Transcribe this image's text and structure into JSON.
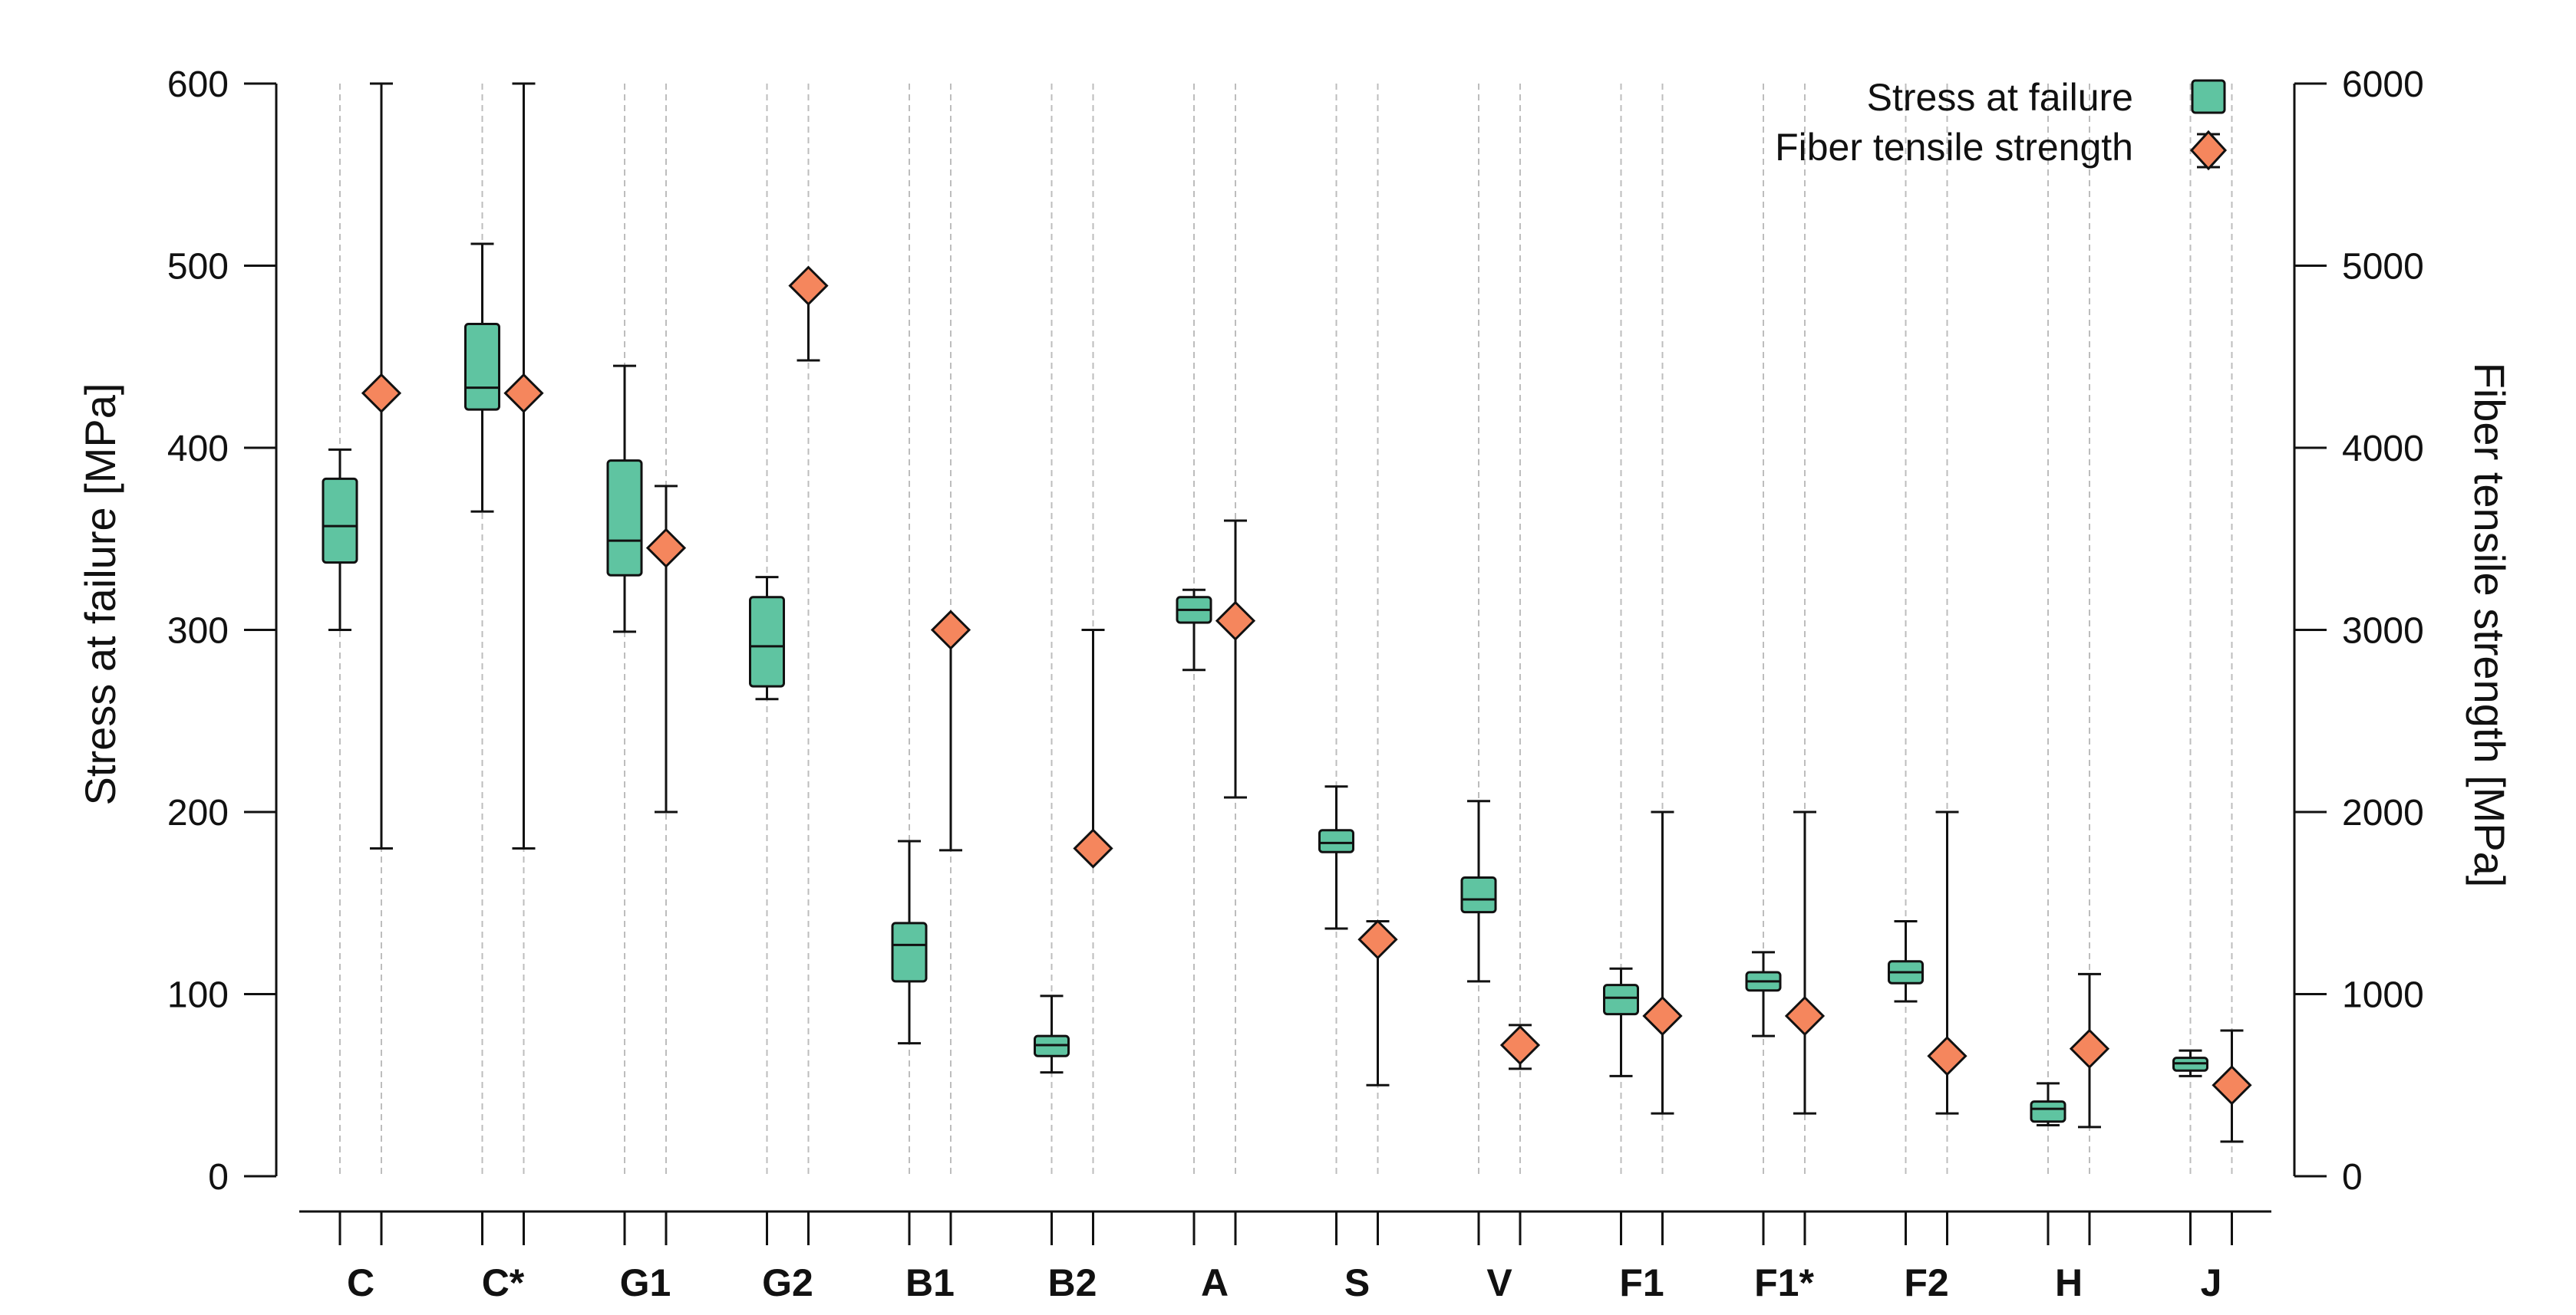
{
  "chart_data": {
    "type": "box",
    "categories": [
      "C",
      "C*",
      "G1",
      "G2",
      "B1",
      "B2",
      "A",
      "S",
      "V",
      "F1",
      "F1*",
      "F2",
      "H",
      "J"
    ],
    "left_axis": {
      "label": "Stress at failure [MPa]",
      "ylim": [
        0,
        600
      ],
      "ticks": [
        0,
        100,
        200,
        300,
        400,
        500,
        600
      ]
    },
    "right_axis": {
      "label": "Fiber tensile strength [MPa]",
      "ylim": [
        0,
        6000
      ],
      "ticks": [
        0,
        1000,
        2000,
        3000,
        4000,
        5000,
        6000
      ]
    },
    "legend": {
      "placement": "top-right",
      "entries": [
        {
          "label": "Stress at failure",
          "marker": "box"
        },
        {
          "label": "Fiber tensile strength",
          "marker": "diamond"
        }
      ]
    },
    "colors": {
      "box": "#5fc4a1",
      "diamond": "#f5865d",
      "stroke": "#111111",
      "grid": "#bdbdbd"
    },
    "grid": "vertical-dashed",
    "stress_at_failure": [
      {
        "category": "C",
        "min": 300,
        "q1": 337,
        "median": 357,
        "q3": 383,
        "max": 399
      },
      {
        "category": "C*",
        "min": 365,
        "q1": 421,
        "median": 433,
        "q3": 468,
        "max": 512
      },
      {
        "category": "G1",
        "min": 299,
        "q1": 330,
        "median": 349,
        "q3": 393,
        "max": 445
      },
      {
        "category": "G2",
        "min": 262,
        "q1": 269,
        "median": 291,
        "q3": 318,
        "max": 329
      },
      {
        "category": "B1",
        "min": 73,
        "q1": 107,
        "median": 127,
        "q3": 139,
        "max": 184
      },
      {
        "category": "B2",
        "min": 57,
        "q1": 66,
        "median": 72,
        "q3": 77,
        "max": 99
      },
      {
        "category": "A",
        "min": 278,
        "q1": 304,
        "median": 311,
        "q3": 318,
        "max": 322
      },
      {
        "category": "S",
        "min": 136,
        "q1": 178,
        "median": 183,
        "q3": 190,
        "max": 214
      },
      {
        "category": "V",
        "min": 107,
        "q1": 145,
        "median": 152,
        "q3": 164,
        "max": 206
      },
      {
        "category": "F1",
        "min": 55,
        "q1": 89,
        "median": 98,
        "q3": 105,
        "max": 114
      },
      {
        "category": "F1*",
        "min": 77,
        "q1": 102,
        "median": 107,
        "q3": 112,
        "max": 123
      },
      {
        "category": "F2",
        "min": 96,
        "q1": 106,
        "median": 112,
        "q3": 118,
        "max": 140
      },
      {
        "category": "H",
        "min": 28,
        "q1": 30,
        "median": 37,
        "q3": 41,
        "max": 51
      },
      {
        "category": "J",
        "min": 55,
        "q1": 58,
        "median": 62,
        "q3": 65,
        "max": 69
      }
    ],
    "fiber_tensile_strength": [
      {
        "category": "C",
        "value": 4300,
        "low": 1800,
        "high": 6000
      },
      {
        "category": "C*",
        "value": 4300,
        "low": 1800,
        "high": 6000
      },
      {
        "category": "G1",
        "value": 3450,
        "low": 2000,
        "high": 3790
      },
      {
        "category": "G2",
        "value": 4890,
        "low": 4480,
        "high": 4890
      },
      {
        "category": "B1",
        "value": 3000,
        "low": 1790,
        "high": 3000
      },
      {
        "category": "B2",
        "value": 1800,
        "low": 1800,
        "high": 3000
      },
      {
        "category": "A",
        "value": 3050,
        "low": 2080,
        "high": 3600
      },
      {
        "category": "S",
        "value": 1300,
        "low": 500,
        "high": 1400
      },
      {
        "category": "V",
        "value": 720,
        "low": 590,
        "high": 830
      },
      {
        "category": "F1",
        "value": 880,
        "low": 345,
        "high": 2000
      },
      {
        "category": "F1*",
        "value": 880,
        "low": 345,
        "high": 2000
      },
      {
        "category": "F2",
        "value": 660,
        "low": 345,
        "high": 2000
      },
      {
        "category": "H",
        "value": 700,
        "low": 270,
        "high": 1110
      },
      {
        "category": "J",
        "value": 500,
        "low": 190,
        "high": 800
      }
    ]
  }
}
